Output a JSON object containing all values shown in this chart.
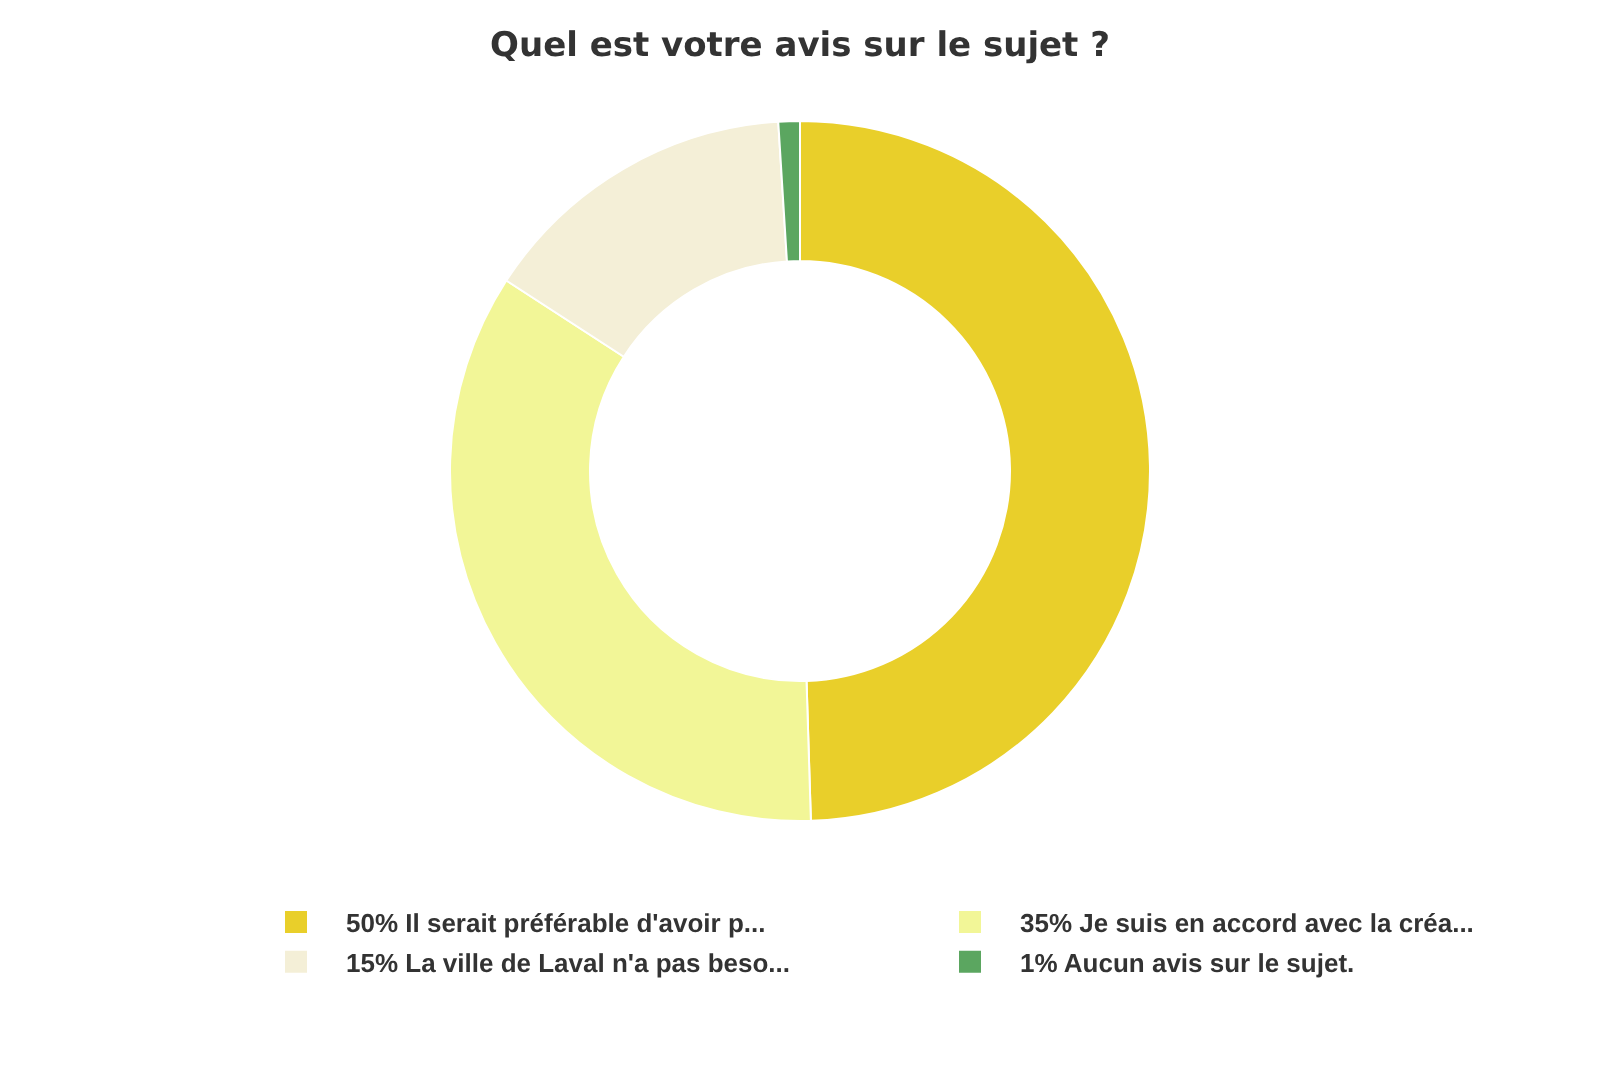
{
  "chart_data": {
    "type": "donut",
    "title": "Quel est votre avis sur le sujet ?",
    "categories": [
      "Il serait préférable d'avoir p...",
      "Je suis en accord avec la créa...",
      "La ville de Laval n'a pas beso...",
      "Aucun avis sur le sujet."
    ],
    "values": [
      50,
      35,
      15,
      1
    ],
    "value_labels": [
      "50%",
      "35%",
      "15%",
      "1%"
    ],
    "colors": [
      "#e9cf2a",
      "#f2f697",
      "#f4efd7",
      "#5ba660"
    ],
    "legend": "bottom"
  }
}
